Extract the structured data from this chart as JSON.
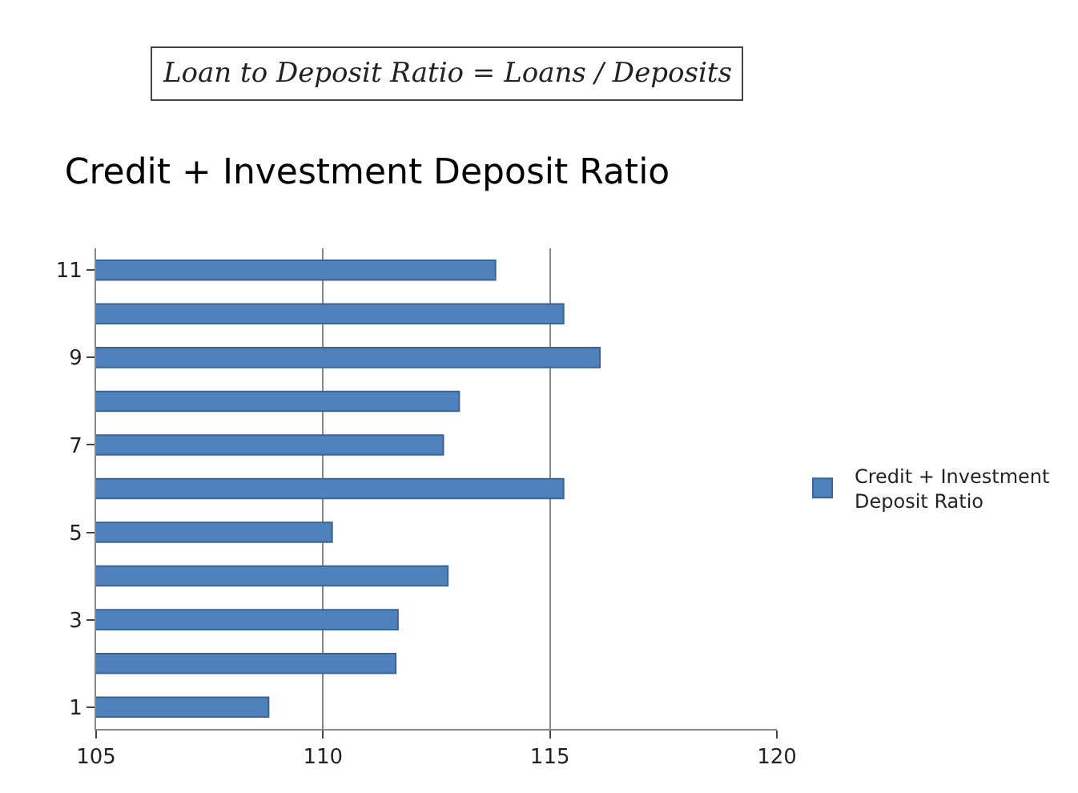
{
  "chart_data": {
    "type": "bar",
    "orientation": "horizontal",
    "title": "Credit + Investment Deposit Ratio",
    "annotations": [
      "Loan to Deposit Ratio = Loans / Deposits"
    ],
    "categories": [
      "11",
      null,
      "9",
      null,
      "7",
      null,
      "5",
      null,
      "3",
      null,
      "1"
    ],
    "series": [
      {
        "name": "Credit + Investment Deposit Ratio",
        "color": "#4f81bd",
        "values": [
          113.8,
          115.3,
          116.1,
          113.0,
          112.65,
          115.3,
          110.2,
          112.75,
          111.65,
          111.6,
          108.8
        ]
      }
    ],
    "xlim": [
      105,
      120
    ],
    "xticks": [
      105,
      110,
      115,
      120
    ],
    "grid": "x",
    "legend": "right"
  }
}
